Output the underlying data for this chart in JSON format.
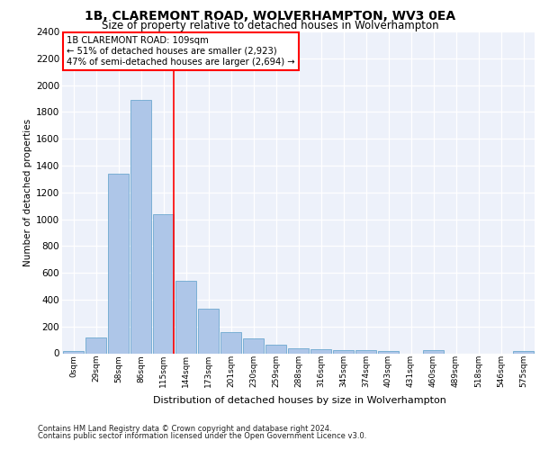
{
  "title": "1B, CLAREMONT ROAD, WOLVERHAMPTON, WV3 0EA",
  "subtitle": "Size of property relative to detached houses in Wolverhampton",
  "xlabel": "Distribution of detached houses by size in Wolverhampton",
  "ylabel": "Number of detached properties",
  "bar_color": "#aec6e8",
  "bar_edgecolor": "#5a9ec9",
  "bg_color": "#edf1fa",
  "grid_color": "#ffffff",
  "categories": [
    "0sqm",
    "29sqm",
    "58sqm",
    "86sqm",
    "115sqm",
    "144sqm",
    "173sqm",
    "201sqm",
    "230sqm",
    "259sqm",
    "288sqm",
    "316sqm",
    "345sqm",
    "374sqm",
    "403sqm",
    "431sqm",
    "460sqm",
    "489sqm",
    "518sqm",
    "546sqm",
    "575sqm"
  ],
  "values": [
    20,
    120,
    1340,
    1890,
    1040,
    540,
    335,
    160,
    110,
    63,
    40,
    30,
    25,
    25,
    18,
    0,
    25,
    0,
    0,
    0,
    20
  ],
  "ylim": [
    0,
    2400
  ],
  "yticks": [
    0,
    200,
    400,
    600,
    800,
    1000,
    1200,
    1400,
    1600,
    1800,
    2000,
    2200,
    2400
  ],
  "property_bin_index": 4,
  "annotation_title": "1B CLAREMONT ROAD: 109sqm",
  "annotation_line1": "← 51% of detached houses are smaller (2,923)",
  "annotation_line2": "47% of semi-detached houses are larger (2,694) →",
  "footer1": "Contains HM Land Registry data © Crown copyright and database right 2024.",
  "footer2": "Contains public sector information licensed under the Open Government Licence v3.0."
}
